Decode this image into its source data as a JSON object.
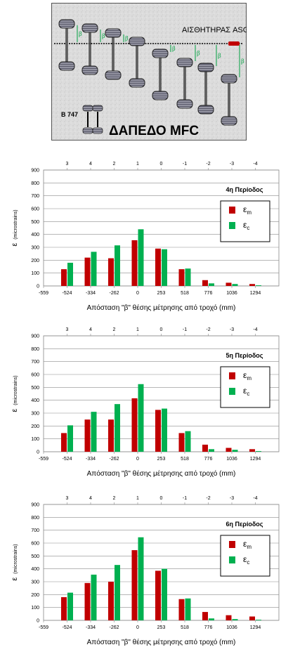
{
  "diagram": {
    "sensor_label": "ΑΙΣΘΗΤΗΡΑΣ ASG",
    "aircraft_label": "B 747",
    "floor_label": "ΔΑΠΕΔΟ MFC",
    "beta_label": "β"
  },
  "chart_data": [
    {
      "type": "bar",
      "title": "4η Περίοδος",
      "xlabel": "Απόσταση \"β\" θέσης μέτρησης από τροχό (mm)",
      "ylabel": "ε",
      "ylabel_sub": "(microstrains)",
      "ylim": [
        0,
        900
      ],
      "yticks": [
        "0",
        "100",
        "200",
        "300",
        "400",
        "500",
        "600",
        "700",
        "800",
        "900"
      ],
      "x_edge_label": "-559",
      "categories": [
        "-524",
        "-334",
        "-262",
        "0",
        "253",
        "518",
        "776",
        "1036",
        "1294"
      ],
      "top_categories": [
        "3",
        "4",
        "2",
        "1",
        "0",
        "-1",
        "-2",
        "-3",
        "-4"
      ],
      "legend": "right-box",
      "series": [
        {
          "name": "ε",
          "name_sub": "m",
          "color": "#c00000",
          "values": [
            130,
            220,
            215,
            355,
            290,
            130,
            45,
            25,
            15
          ]
        },
        {
          "name": "ε",
          "name_sub": "c",
          "color": "#00b050",
          "values": [
            180,
            265,
            315,
            440,
            285,
            135,
            20,
            15,
            5
          ]
        }
      ]
    },
    {
      "type": "bar",
      "title": "5η Περίοδος",
      "xlabel": "Απόσταση \"β\" θέσης μέτρησης από τροχό (mm)",
      "ylabel": "ε",
      "ylabel_sub": "(microstrains)",
      "ylim": [
        0,
        900
      ],
      "yticks": [
        "0",
        "100",
        "200",
        "300",
        "400",
        "500",
        "600",
        "700",
        "800",
        "900"
      ],
      "x_edge_label": "-559",
      "categories": [
        "-524",
        "-334",
        "-262",
        "0",
        "253",
        "518",
        "776",
        "1036",
        "1294"
      ],
      "top_categories": [
        "3",
        "4",
        "2",
        "1",
        "0",
        "-1",
        "-2",
        "-3",
        "-4"
      ],
      "legend": "right-box",
      "series": [
        {
          "name": "ε",
          "name_sub": "m",
          "color": "#c00000",
          "values": [
            145,
            250,
            250,
            415,
            325,
            145,
            55,
            30,
            20
          ]
        },
        {
          "name": "ε",
          "name_sub": "c",
          "color": "#00b050",
          "values": [
            205,
            310,
            370,
            525,
            335,
            160,
            20,
            15,
            5
          ]
        }
      ]
    },
    {
      "type": "bar",
      "title": "6η Περίοδος",
      "xlabel": "Απόσταση \"β\" θέσης μέτρησης από τροχό (mm)",
      "ylabel": "ε",
      "ylabel_sub": "(microstrains)",
      "ylim": [
        0,
        900
      ],
      "yticks": [
        "0",
        "100",
        "200",
        "300",
        "400",
        "500",
        "600",
        "700",
        "800",
        "900"
      ],
      "x_edge_label": "-559",
      "categories": [
        "-524",
        "-334",
        "-262",
        "0",
        "253",
        "518",
        "776",
        "1036",
        "1294"
      ],
      "top_categories": [
        "3",
        "4",
        "2",
        "1",
        "0",
        "-1",
        "-2",
        "-3",
        "-4"
      ],
      "legend": "right-box",
      "series": [
        {
          "name": "ε",
          "name_sub": "m",
          "color": "#c00000",
          "values": [
            180,
            290,
            300,
            545,
            385,
            165,
            65,
            40,
            30
          ]
        },
        {
          "name": "ε",
          "name_sub": "c",
          "color": "#00b050",
          "values": [
            215,
            355,
            430,
            645,
            400,
            170,
            15,
            10,
            5
          ]
        }
      ]
    }
  ]
}
